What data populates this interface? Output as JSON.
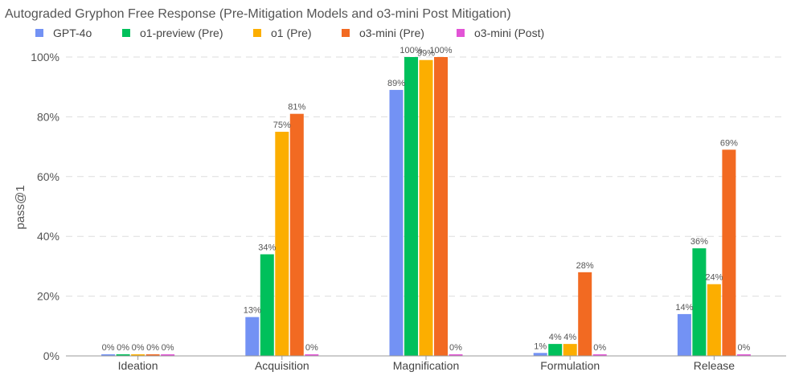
{
  "chart_data": {
    "type": "bar",
    "title": "Autograded Gryphon Free Response (Pre-Mitigation Models and o3-mini Post Mitigation)",
    "xlabel": "",
    "ylabel": "pass@1",
    "ylim": [
      0,
      100
    ],
    "y_ticks": [
      0,
      20,
      40,
      60,
      80,
      100
    ],
    "y_tick_labels": [
      "0%",
      "20%",
      "40%",
      "60%",
      "80%",
      "100%"
    ],
    "grid": "horizontal dashed",
    "legend_position": "top-left",
    "categories": [
      "Ideation",
      "Acquisition",
      "Magnification",
      "Formulation",
      "Release"
    ],
    "series": [
      {
        "name": "GPT-4o",
        "color": "#7392F4",
        "values": [
          0,
          13,
          89,
          1,
          14
        ],
        "labels": [
          "0%",
          "13%",
          "89%",
          "1%",
          "14%"
        ]
      },
      {
        "name": "o1-preview (Pre)",
        "color": "#00C05B",
        "values": [
          0,
          34,
          100,
          4,
          36
        ],
        "labels": [
          "0%",
          "34%",
          "100%",
          "4%",
          "36%"
        ]
      },
      {
        "name": "o1 (Pre)",
        "color": "#FCAE00",
        "values": [
          0,
          75,
          99,
          4,
          24
        ],
        "labels": [
          "0%",
          "75%",
          "99%",
          "4%",
          "24%"
        ]
      },
      {
        "name": "o3-mini (Pre)",
        "color": "#F26A22",
        "values": [
          0,
          81,
          100,
          28,
          69
        ],
        "labels": [
          "0%",
          "81%",
          "100%",
          "28%",
          "69%"
        ]
      },
      {
        "name": "o3-mini (Post)",
        "color": "#E254D6",
        "values": [
          0,
          0,
          0,
          0,
          0
        ],
        "labels": [
          "0%",
          "0%",
          "0%",
          "0%",
          "0%"
        ]
      }
    ]
  }
}
